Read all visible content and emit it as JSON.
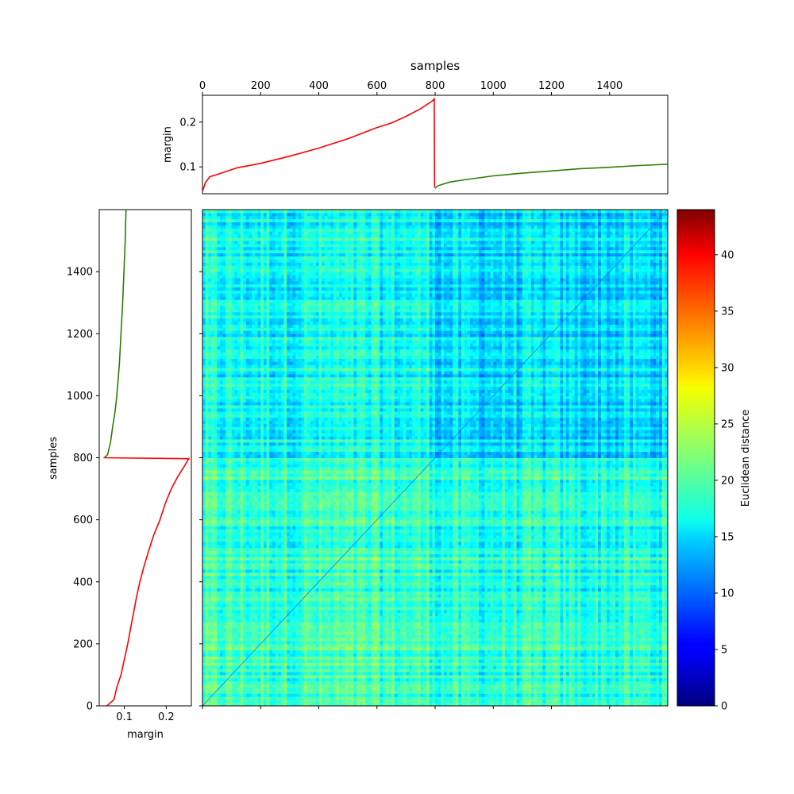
{
  "chart_data": [
    {
      "id": "top",
      "type": "line",
      "title": "samples",
      "xlabel": "",
      "ylabel": "margin",
      "xlim": [
        0,
        1600
      ],
      "ylim": [
        0.04,
        0.26
      ],
      "xticks": [
        0,
        200,
        400,
        600,
        800,
        1000,
        1200,
        1400
      ],
      "yticks": [
        0.1,
        0.2
      ],
      "series": [
        {
          "color": "#ff0000",
          "points": [
            [
              0,
              0.045
            ],
            [
              10,
              0.065
            ],
            [
              25,
              0.078
            ],
            [
              60,
              0.085
            ],
            [
              120,
              0.098
            ],
            [
              200,
              0.108
            ],
            [
              300,
              0.124
            ],
            [
              400,
              0.142
            ],
            [
              500,
              0.163
            ],
            [
              600,
              0.188
            ],
            [
              650,
              0.198
            ],
            [
              700,
              0.213
            ],
            [
              750,
              0.23
            ],
            [
              790,
              0.247
            ],
            [
              797,
              0.252
            ],
            [
              798,
              0.054
            ]
          ]
        },
        {
          "color": "#2e7d00",
          "points": [
            [
              800,
              0.052
            ],
            [
              810,
              0.058
            ],
            [
              850,
              0.066
            ],
            [
              900,
              0.071
            ],
            [
              1000,
              0.08
            ],
            [
              1100,
              0.086
            ],
            [
              1200,
              0.091
            ],
            [
              1300,
              0.096
            ],
            [
              1400,
              0.099
            ],
            [
              1500,
              0.103
            ],
            [
              1600,
              0.106
            ]
          ]
        }
      ]
    },
    {
      "id": "left",
      "type": "line",
      "title": "",
      "xlabel": "margin",
      "ylabel": "samples",
      "xlim": [
        0.04,
        0.26
      ],
      "ylim": [
        0,
        1600
      ],
      "xticks": [
        0.1,
        0.2
      ],
      "yticks": [
        0,
        200,
        400,
        600,
        800,
        1000,
        1200,
        1400
      ],
      "series": [
        {
          "color": "#ff0000",
          "points": [
            [
              0.058,
              0
            ],
            [
              0.075,
              20
            ],
            [
              0.082,
              60
            ],
            [
              0.092,
              100
            ],
            [
              0.1,
              150
            ],
            [
              0.108,
              200
            ],
            [
              0.115,
              250
            ],
            [
              0.122,
              300
            ],
            [
              0.129,
              350
            ],
            [
              0.137,
              400
            ],
            [
              0.147,
              450
            ],
            [
              0.158,
              500
            ],
            [
              0.17,
              550
            ],
            [
              0.185,
              600
            ],
            [
              0.197,
              650
            ],
            [
              0.212,
              700
            ],
            [
              0.228,
              740
            ],
            [
              0.242,
              770
            ],
            [
              0.254,
              797
            ],
            [
              0.05,
              800
            ]
          ]
        },
        {
          "color": "#2e7d00",
          "points": [
            [
              0.052,
              800
            ],
            [
              0.06,
              810
            ],
            [
              0.067,
              850
            ],
            [
              0.072,
              900
            ],
            [
              0.078,
              950
            ],
            [
              0.082,
              1000
            ],
            [
              0.088,
              1100
            ],
            [
              0.092,
              1200
            ],
            [
              0.096,
              1300
            ],
            [
              0.099,
              1400
            ],
            [
              0.102,
              1500
            ],
            [
              0.104,
              1600
            ]
          ]
        }
      ]
    },
    {
      "id": "heatmap",
      "type": "heatmap",
      "title": "",
      "xlabel": "",
      "ylabel": "",
      "xlim": [
        0,
        1600
      ],
      "ylim": [
        0,
        1600
      ],
      "xticks": [
        0,
        200,
        400,
        600,
        800,
        1000,
        1200,
        1400
      ],
      "yticks": [
        0,
        200,
        400,
        600,
        800,
        1000,
        1200,
        1400
      ],
      "blocks": [
        {
          "rows": [
            0,
            800
          ],
          "cols": [
            0,
            800
          ],
          "mean_distance": 19.0
        },
        {
          "rows": [
            0,
            800
          ],
          "cols": [
            800,
            1600
          ],
          "mean_distance": 18.0
        },
        {
          "rows": [
            800,
            1600
          ],
          "cols": [
            0,
            800
          ],
          "mean_distance": 17.0
        },
        {
          "rows": [
            800,
            1600
          ],
          "cols": [
            800,
            1600
          ],
          "mean_distance": 15.0
        }
      ],
      "diagonal_distance": 0
    },
    {
      "id": "colorbar",
      "type": "colorbar",
      "label": "Euclidean distance",
      "range": [
        0,
        44
      ],
      "ticks": [
        0,
        5,
        10,
        15,
        20,
        25,
        30,
        35,
        40
      ],
      "colormap": "jet"
    }
  ]
}
